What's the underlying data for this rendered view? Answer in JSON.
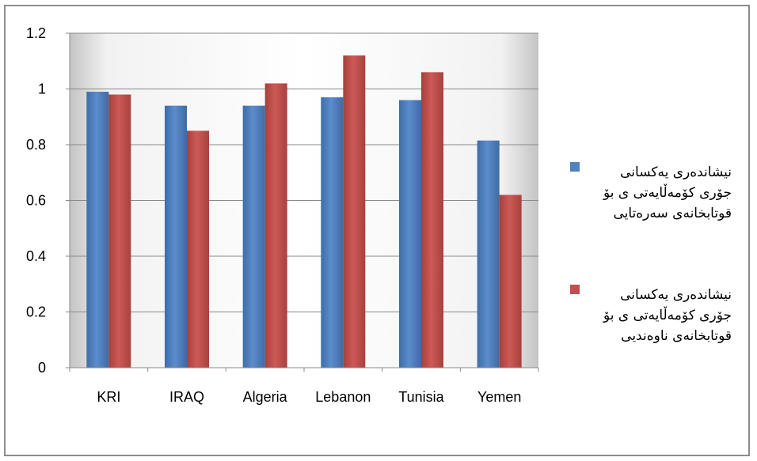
{
  "chart_data": {
    "type": "bar",
    "categories": [
      "KRI",
      "IRAQ",
      "Algeria",
      "Lebanon",
      "Tunisia",
      "Yemen"
    ],
    "series": [
      {
        "name": "نیشاندەری یەکسانی جۆری کۆمەڵایەتی ی بۆ قوتابخانەی سەرەتایی",
        "color": "#4F81BD",
        "values": [
          0.99,
          0.94,
          0.94,
          0.97,
          0.96,
          0.815
        ]
      },
      {
        "name": "نیشاندەری یەکسانی جۆری کۆمەڵایەتی ی بۆ قوتابخانەی ناوەندیی",
        "color": "#C0504D",
        "values": [
          0.98,
          0.85,
          1.02,
          1.12,
          1.06,
          0.62
        ]
      }
    ],
    "ylim": [
      0,
      1.2
    ],
    "yticks": [
      "0",
      "0.2",
      "0.4",
      "0.6",
      "0.8",
      "1",
      "1.2"
    ],
    "grid": true,
    "legend_position": "right"
  },
  "legend": {
    "entries": [
      {
        "line1": "نیشاندەری یەکسانی",
        "line2": "جۆری کۆمەڵایەتی ی بۆ",
        "line3": "قوتابخانەی سەرەتایی"
      },
      {
        "line1": "نیشاندەری یەکسانی",
        "line2": "جۆری کۆمەڵایەتی ی بۆ",
        "line3": "قوتابخانەی ناوەندیی"
      }
    ]
  }
}
